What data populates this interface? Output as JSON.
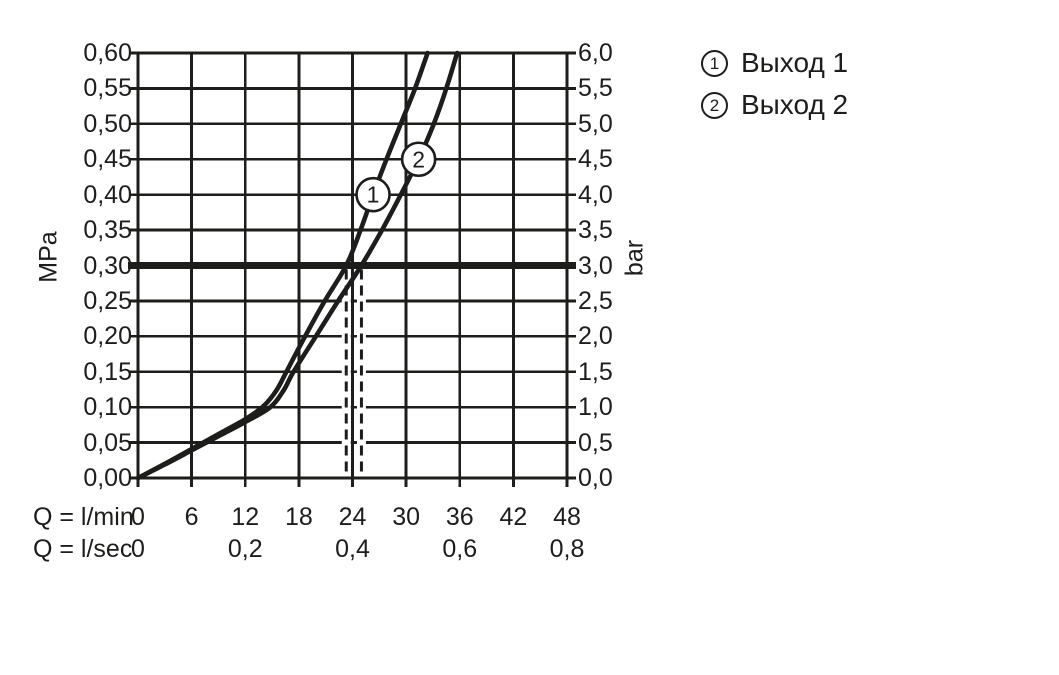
{
  "figure": {
    "background": "#ffffff",
    "ink_color": "#1d1d1b"
  },
  "legend": {
    "items": [
      {
        "symbol": "1",
        "label": "Выход 1"
      },
      {
        "symbol": "2",
        "label": "Выход 2"
      }
    ]
  },
  "axes": {
    "left": {
      "unit": "MPa",
      "tick_labels": [
        "0,60",
        "0,55",
        "0,50",
        "0,45",
        "0,40",
        "0,35",
        "0,30",
        "0,25",
        "0,20",
        "0,15",
        "0,10",
        "0,05",
        "0,00"
      ]
    },
    "right": {
      "unit": "bar",
      "tick_labels": [
        "6,0",
        "5,5",
        "5,0",
        "4,5",
        "4,0",
        "3,5",
        "3,0",
        "2,5",
        "2,0",
        "1,5",
        "1,0",
        "0,5",
        "0,0"
      ]
    },
    "bottom_lmin": {
      "label": "Q = l/min",
      "ticks": [
        "0",
        "6",
        "12",
        "18",
        "24",
        "30",
        "36",
        "42",
        "48"
      ]
    },
    "bottom_lsec": {
      "label": "Q = l/sec",
      "ticks": [
        {
          "text": "0",
          "q": 0
        },
        {
          "text": "0,2",
          "q": 12
        },
        {
          "text": "0,4",
          "q": 24
        },
        {
          "text": "0,6",
          "q": 36
        },
        {
          "text": "0,8",
          "q": 48
        }
      ]
    }
  },
  "chart_data": {
    "type": "line",
    "title": "",
    "xlabel": "Q = l/min",
    "x_secondary_label": "Q = l/sec",
    "ylabel": "MPa",
    "y_secondary_label": "bar",
    "xlim": [
      0,
      48
    ],
    "ylim": [
      0,
      0.6
    ],
    "x_gridline_step": 6,
    "y_gridline_step": 0.05,
    "y_secondary_range": [
      0,
      6
    ],
    "grid": true,
    "legend_position": "top-right",
    "reference_line_mpa": 0.3,
    "dashed_flow_marks_lmin": [
      23.3,
      25.0
    ],
    "series": [
      {
        "name": "Выход 1",
        "marker": "1",
        "marker_at": [
          26.3,
          0.4
        ],
        "points": [
          [
            0,
            0
          ],
          [
            3,
            0.02
          ],
          [
            6,
            0.041
          ],
          [
            9,
            0.062
          ],
          [
            12,
            0.083
          ],
          [
            14,
            0.101
          ],
          [
            15.5,
            0.124
          ],
          [
            16.6,
            0.15
          ],
          [
            18.7,
            0.2
          ],
          [
            20.9,
            0.25
          ],
          [
            23.3,
            0.3
          ],
          [
            24.9,
            0.35
          ],
          [
            26.3,
            0.4
          ],
          [
            27.8,
            0.45
          ],
          [
            29.4,
            0.5
          ],
          [
            31.0,
            0.55
          ],
          [
            32.4,
            0.6
          ]
        ]
      },
      {
        "name": "Выход 2",
        "marker": "2",
        "marker_at": [
          31.4,
          0.45
        ],
        "points": [
          [
            0,
            0
          ],
          [
            3,
            0.019
          ],
          [
            6,
            0.039
          ],
          [
            9,
            0.059
          ],
          [
            12,
            0.079
          ],
          [
            14.8,
            0.1
          ],
          [
            16.3,
            0.124
          ],
          [
            17.4,
            0.15
          ],
          [
            19.9,
            0.2
          ],
          [
            22.4,
            0.25
          ],
          [
            25.0,
            0.3
          ],
          [
            27.3,
            0.35
          ],
          [
            29.4,
            0.4
          ],
          [
            31.4,
            0.45
          ],
          [
            33.1,
            0.5
          ],
          [
            34.5,
            0.55
          ],
          [
            35.7,
            0.6
          ]
        ]
      }
    ]
  }
}
